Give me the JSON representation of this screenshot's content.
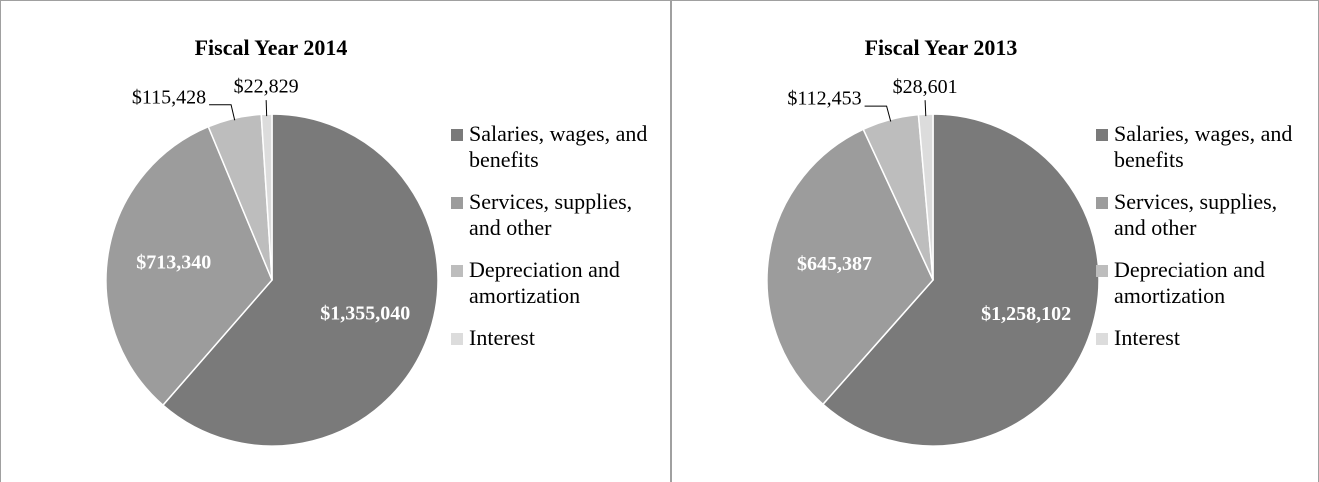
{
  "chart_data": [
    {
      "type": "pie",
      "title": "Fiscal Year 2014",
      "categories": [
        "Salaries, wages, and benefits",
        "Services, supplies, and other",
        "Depreciation and amortization",
        "Interest"
      ],
      "values": [
        1355040,
        713340,
        115428,
        22829
      ],
      "value_labels": [
        "$1,355,040",
        "$713,340",
        "$115,428",
        "$22,829"
      ],
      "colors": [
        "#7a7a7a",
        "#9c9c9c",
        "#bdbdbd",
        "#dcdcdc"
      ],
      "legend": "right"
    },
    {
      "type": "pie",
      "title": "Fiscal Year 2013",
      "categories": [
        "Salaries, wages, and benefits",
        "Services, supplies, and other",
        "Depreciation and amortization",
        "Interest"
      ],
      "values": [
        1258102,
        645387,
        112453,
        28601
      ],
      "value_labels": [
        "$1,258,102",
        "$645,387",
        "$112,453",
        "$28,601"
      ],
      "colors": [
        "#7a7a7a",
        "#9c9c9c",
        "#bdbdbd",
        "#dcdcdc"
      ],
      "legend": "right"
    }
  ]
}
